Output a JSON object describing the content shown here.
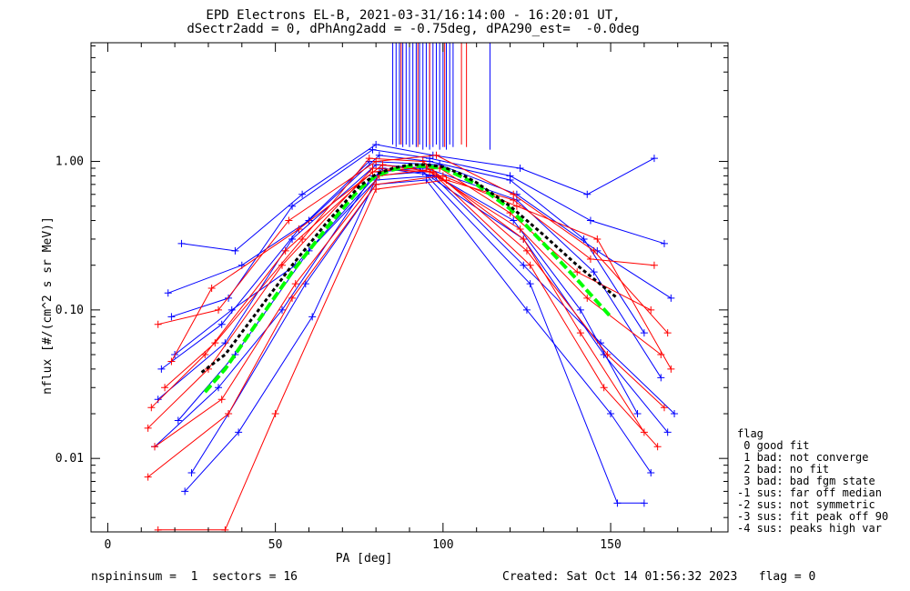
{
  "header": {
    "title_line1": "EPD Electrons EL-B, 2021-03-31/16:14:00 - 16:20:01 UT,",
    "title_line2": "dSectr2add = 0, dPhAng2add = -0.75deg, dPA290_est=  -0.0deg"
  },
  "colors": {
    "axis": "#000000",
    "blue": "#0000ff",
    "red": "#ff0000",
    "fit_green": "#00ff00",
    "fit_black": "#000000"
  },
  "chart_data": {
    "type": "line",
    "xlabel": "PA [deg]",
    "ylabel": "nflux [#/(cm^2 s sr MeV)]",
    "xlim": [
      -5,
      185
    ],
    "ylim": [
      0.0032,
      6.3
    ],
    "yscale": "log",
    "xticks": [
      0,
      50,
      100,
      150
    ],
    "yticks": [
      {
        "value": 0.01,
        "label": "0.01"
      },
      {
        "value": 0.1,
        "label": "0.10"
      },
      {
        "value": 1.0,
        "label": "1.00"
      }
    ],
    "series": [
      {
        "color": "blue",
        "x": [
          15,
          35,
          55,
          80,
          95,
          122,
          145,
          165
        ],
        "y": [
          0.025,
          0.06,
          0.3,
          0.95,
          0.9,
          0.55,
          0.18,
          0.035
        ]
      },
      {
        "color": "blue",
        "x": [
          18,
          40,
          60,
          81,
          96,
          120,
          142,
          160
        ],
        "y": [
          0.13,
          0.2,
          0.4,
          1.1,
          1.0,
          0.75,
          0.3,
          0.07
        ]
      },
      {
        "color": "blue",
        "x": [
          14,
          33,
          52,
          79,
          94,
          124,
          148,
          167
        ],
        "y": [
          0.012,
          0.03,
          0.1,
          0.8,
          0.85,
          0.3,
          0.05,
          0.015
        ]
      },
      {
        "color": "blue",
        "x": [
          22,
          38,
          58,
          80,
          97,
          123,
          143,
          163
        ],
        "y": [
          0.28,
          0.25,
          0.6,
          1.3,
          1.1,
          0.9,
          0.6,
          1.05
        ]
      },
      {
        "color": "blue",
        "x": [
          20,
          37,
          56,
          82,
          98,
          121,
          141,
          158
        ],
        "y": [
          0.05,
          0.1,
          0.2,
          0.9,
          0.8,
          0.4,
          0.1,
          0.02
        ]
      },
      {
        "color": "blue",
        "x": [
          25,
          36,
          59,
          80,
          95,
          125,
          150,
          162
        ],
        "y": [
          0.008,
          0.02,
          0.15,
          0.7,
          0.75,
          0.1,
          0.02,
          0.008
        ]
      },
      {
        "color": "blue",
        "x": [
          16,
          34,
          57,
          78,
          99,
          122,
          146,
          168
        ],
        "y": [
          0.04,
          0.08,
          0.35,
          1.0,
          0.95,
          0.6,
          0.25,
          0.12
        ]
      },
      {
        "color": "blue",
        "x": [
          23,
          39,
          61,
          81,
          93,
          126,
          152,
          160
        ],
        "y": [
          0.006,
          0.015,
          0.09,
          0.85,
          0.9,
          0.15,
          0.005,
          0.005
        ]
      },
      {
        "color": "blue",
        "x": [
          19,
          36,
          55,
          79,
          96,
          120,
          144,
          166
        ],
        "y": [
          0.09,
          0.12,
          0.5,
          1.2,
          1.05,
          0.8,
          0.4,
          0.28
        ]
      },
      {
        "color": "blue",
        "x": [
          21,
          38,
          60,
          80,
          97,
          124,
          147,
          169
        ],
        "y": [
          0.018,
          0.05,
          0.25,
          0.75,
          0.8,
          0.2,
          0.06,
          0.02
        ]
      },
      {
        "color": "red",
        "x": [
          15,
          33,
          54,
          80,
          98,
          121,
          145,
          167
        ],
        "y": [
          0.08,
          0.1,
          0.4,
          1.0,
          1.1,
          0.6,
          0.25,
          0.07
        ]
      },
      {
        "color": "red",
        "x": [
          12,
          30,
          52,
          79,
          96,
          123,
          143,
          165
        ],
        "y": [
          0.016,
          0.04,
          0.2,
          0.9,
          0.85,
          0.35,
          0.12,
          0.05
        ]
      },
      {
        "color": "red",
        "x": [
          14,
          34,
          56,
          81,
          99,
          120,
          140,
          162
        ],
        "y": [
          0.012,
          0.025,
          0.15,
          0.8,
          0.9,
          0.45,
          0.18,
          0.1
        ]
      },
      {
        "color": "red",
        "x": [
          17,
          32,
          58,
          78,
          94,
          125,
          149,
          166
        ],
        "y": [
          0.03,
          0.06,
          0.3,
          1.05,
          1.0,
          0.25,
          0.05,
          0.022
        ]
      },
      {
        "color": "red",
        "x": [
          12,
          36,
          55,
          80,
          100,
          122,
          146,
          168
        ],
        "y": [
          0.0075,
          0.02,
          0.12,
          0.7,
          0.8,
          0.5,
          0.3,
          0.04
        ]
      },
      {
        "color": "red",
        "x": [
          15,
          35,
          50,
          80,
          101,
          121,
          144,
          163
        ],
        "y": [
          0.0033,
          0.0033,
          0.02,
          0.65,
          0.75,
          0.55,
          0.22,
          0.2
        ]
      },
      {
        "color": "red",
        "x": [
          19,
          31,
          57,
          82,
          97,
          124,
          141,
          160
        ],
        "y": [
          0.045,
          0.14,
          0.35,
          0.95,
          0.85,
          0.3,
          0.07,
          0.015
        ]
      },
      {
        "color": "red",
        "x": [
          13,
          29,
          53,
          79,
          95,
          126,
          148,
          164
        ],
        "y": [
          0.022,
          0.05,
          0.25,
          0.85,
          0.92,
          0.2,
          0.03,
          0.012
        ]
      }
    ],
    "top_lines": {
      "blue_x": [
        85,
        86,
        87,
        88,
        89,
        90,
        91,
        92,
        93,
        94,
        95,
        96,
        97,
        98,
        99,
        100,
        101,
        102,
        103,
        114
      ],
      "red_x": [
        87.5,
        92.5,
        96,
        100.5,
        105.5,
        107
      ],
      "y_bottom": [
        1.3,
        1.25,
        1.3,
        1.25,
        1.3,
        1.25,
        1.3,
        1.25,
        1.3,
        1.2,
        1.25,
        1.2,
        1.25,
        1.3,
        1.2,
        1.25,
        1.2,
        1.3,
        1.25,
        1.2
      ]
    },
    "fit_green": {
      "x": [
        29,
        35,
        45,
        55,
        65,
        75,
        80,
        85,
        90,
        95,
        100,
        105,
        110,
        120,
        130,
        140,
        150
      ],
      "y": [
        0.028,
        0.04,
        0.085,
        0.18,
        0.35,
        0.65,
        0.8,
        0.88,
        0.93,
        0.93,
        0.9,
        0.8,
        0.7,
        0.48,
        0.28,
        0.16,
        0.09
      ]
    },
    "fit_black": {
      "x": [
        28,
        35,
        45,
        55,
        65,
        75,
        80,
        85,
        90,
        95,
        100,
        105,
        110,
        120,
        130,
        140,
        152
      ],
      "y": [
        0.038,
        0.05,
        0.1,
        0.2,
        0.38,
        0.68,
        0.82,
        0.9,
        0.95,
        0.95,
        0.92,
        0.83,
        0.72,
        0.5,
        0.32,
        0.2,
        0.12
      ]
    }
  },
  "legend": {
    "lines": [
      "flag",
      " 0 good fit",
      " 1 bad: not converge",
      " 2 bad: no fit",
      " 3 bad: bad fgm state",
      "-1 sus: far off median",
      "-2 sus: not symmetric",
      "-3 sus: fit peak off 90",
      "-4 sus: peaks high var"
    ]
  },
  "footer": {
    "left": "nspininsum =  1  sectors = 16",
    "right": "Created: Sat Oct 14 01:56:32 2023   flag = 0"
  }
}
